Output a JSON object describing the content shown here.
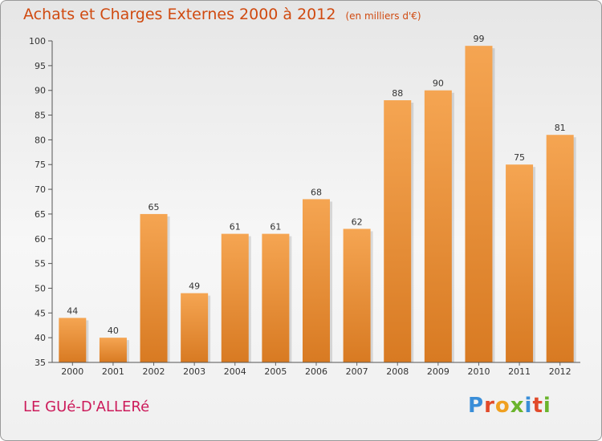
{
  "title": "Achats et Charges Externes 2000 à 2012",
  "unit": "(en milliers d'€)",
  "commune": "LE GUé-D'ALLERé",
  "brand": {
    "letters": [
      "P",
      "r",
      "o",
      "x",
      "i",
      "t",
      "i"
    ],
    "colors": [
      "#3a8ed8",
      "#e14a2a",
      "#f0a020",
      "#6ab42c",
      "#3a8ed8",
      "#e14a2a",
      "#6ab42c"
    ]
  },
  "colors": {
    "title": "#d04a10",
    "commune": "#cc1a5a",
    "bar_top": "#f5a552",
    "bar_bottom": "#d87a22"
  },
  "chart_data": {
    "type": "bar",
    "categories": [
      "2000",
      "2001",
      "2002",
      "2003",
      "2004",
      "2005",
      "2006",
      "2007",
      "2008",
      "2009",
      "2010",
      "2011",
      "2012"
    ],
    "values": [
      44,
      40,
      65,
      49,
      61,
      61,
      68,
      62,
      88,
      90,
      99,
      75,
      81
    ],
    "title": "Achats et Charges Externes 2000 à 2012",
    "xlabel": "",
    "ylabel": "",
    "ylim": [
      35,
      100
    ],
    "yticks": [
      35,
      40,
      45,
      50,
      55,
      60,
      65,
      70,
      75,
      80,
      85,
      90,
      95,
      100
    ],
    "grid": false,
    "data_labels": true
  }
}
